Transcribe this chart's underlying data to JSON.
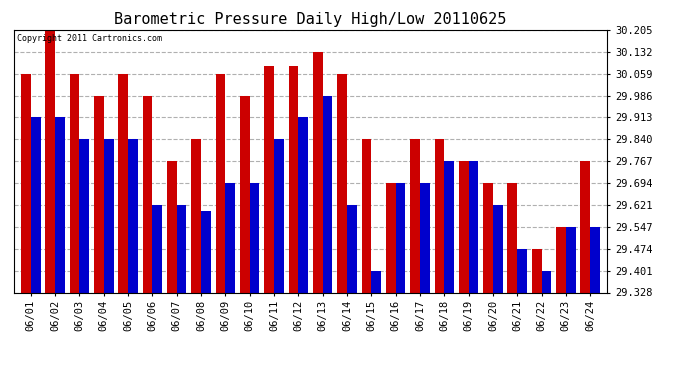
{
  "title": "Barometric Pressure Daily High/Low 20110625",
  "copyright": "Copyright 2011 Cartronics.com",
  "dates": [
    "06/01",
    "06/02",
    "06/03",
    "06/04",
    "06/05",
    "06/06",
    "06/07",
    "06/08",
    "06/09",
    "06/10",
    "06/11",
    "06/12",
    "06/13",
    "06/14",
    "06/15",
    "06/16",
    "06/17",
    "06/18",
    "06/19",
    "06/20",
    "06/21",
    "06/22",
    "06/23",
    "06/24"
  ],
  "highs": [
    30.059,
    30.205,
    30.059,
    29.986,
    30.059,
    29.986,
    29.767,
    29.84,
    30.059,
    29.986,
    30.086,
    30.086,
    30.132,
    30.059,
    29.84,
    29.694,
    29.84,
    29.84,
    29.767,
    29.694,
    29.694,
    29.474,
    29.547,
    29.767
  ],
  "lows": [
    29.913,
    29.913,
    29.84,
    29.84,
    29.84,
    29.621,
    29.621,
    29.601,
    29.694,
    29.694,
    29.84,
    29.913,
    29.986,
    29.621,
    29.401,
    29.694,
    29.694,
    29.767,
    29.767,
    29.621,
    29.474,
    29.401,
    29.547,
    29.547
  ],
  "ymin": 29.328,
  "ymax": 30.205,
  "yticks": [
    29.328,
    29.401,
    29.474,
    29.547,
    29.621,
    29.694,
    29.767,
    29.84,
    29.913,
    29.986,
    30.059,
    30.132,
    30.205
  ],
  "high_color": "#cc0000",
  "low_color": "#0000cc",
  "background_color": "#ffffff",
  "grid_color": "#b0b0b0",
  "title_fontsize": 11,
  "bar_width": 0.4
}
